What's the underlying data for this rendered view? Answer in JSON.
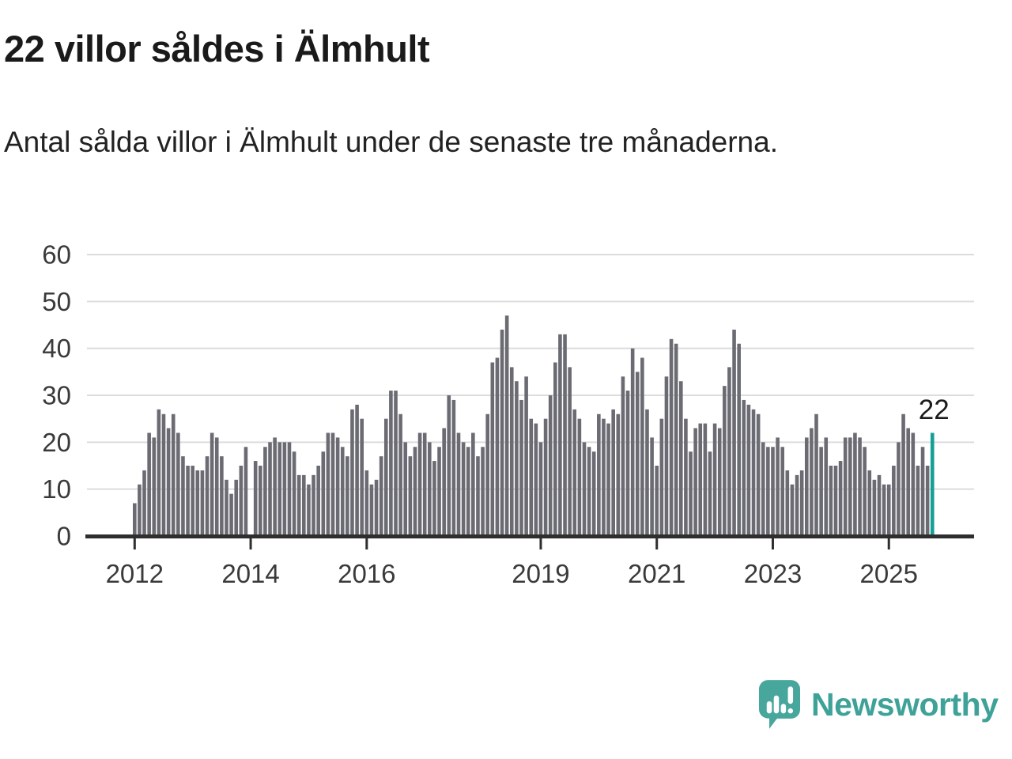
{
  "title": "22 villor såldes i Älmhult",
  "subtitle": "Antal sålda villor i Älmhult under de senaste tre månaderna.",
  "annotation": {
    "label": "22"
  },
  "logo": {
    "text": "Newsworthy"
  },
  "colors": {
    "bar": "#6b6b73",
    "highlight": "#14a096",
    "grid": "#dcdcdc",
    "axis_line": "#2e2e2e",
    "axis_text": "#3a3a3a",
    "annotation_text": "#1b1b1b",
    "logo_icon": "#48a79d",
    "logo_text": "#3ea298"
  },
  "chart_data": {
    "type": "bar",
    "title": "22 villor såldes i Älmhult",
    "subtitle": "Antal sålda villor i Älmhult under de senaste tre månaderna.",
    "ylabel": "",
    "xlabel": "",
    "grid": true,
    "ylim": [
      0,
      60
    ],
    "yticks": [
      0,
      10,
      20,
      30,
      40,
      50,
      60
    ],
    "start_month": "2012-01",
    "end_month": "2025-10",
    "values": [
      7,
      11,
      14,
      22,
      21,
      27,
      26,
      23,
      26,
      22,
      17,
      15,
      15,
      14,
      14,
      17,
      22,
      21,
      17,
      12,
      9,
      12,
      15,
      19,
      0,
      16,
      15,
      19,
      20,
      21,
      20,
      20,
      20,
      18,
      13,
      13,
      11,
      13,
      15,
      18,
      22,
      22,
      21,
      19,
      17,
      27,
      28,
      25,
      14,
      11,
      12,
      17,
      25,
      31,
      31,
      26,
      20,
      17,
      19,
      22,
      22,
      20,
      16,
      19,
      23,
      30,
      29,
      22,
      20,
      19,
      22,
      17,
      19,
      26,
      37,
      38,
      44,
      47,
      36,
      33,
      29,
      34,
      25,
      24,
      20,
      25,
      30,
      37,
      43,
      43,
      36,
      27,
      25,
      20,
      19,
      18,
      26,
      25,
      24,
      27,
      26,
      34,
      31,
      40,
      35,
      38,
      27,
      21,
      15,
      25,
      34,
      42,
      41,
      33,
      25,
      18,
      23,
      24,
      24,
      18,
      24,
      23,
      32,
      36,
      44,
      41,
      29,
      28,
      27,
      26,
      20,
      19,
      19,
      21,
      19,
      14,
      11,
      13,
      14,
      21,
      23,
      26,
      19,
      21,
      15,
      15,
      16,
      21,
      21,
      22,
      21,
      19,
      14,
      12,
      13,
      11,
      11,
      15,
      20,
      26,
      23,
      22,
      15,
      19,
      15,
      22
    ],
    "highlight_index": 165,
    "highlight_value": 22,
    "xticks": [
      {
        "label": "2012",
        "month_index": 0
      },
      {
        "label": "2014",
        "month_index": 24
      },
      {
        "label": "2016",
        "month_index": 48
      },
      {
        "label": "2019",
        "month_index": 84
      },
      {
        "label": "2021",
        "month_index": 108
      },
      {
        "label": "2023",
        "month_index": 132
      },
      {
        "label": "2025",
        "month_index": 156
      }
    ],
    "legend": null
  }
}
